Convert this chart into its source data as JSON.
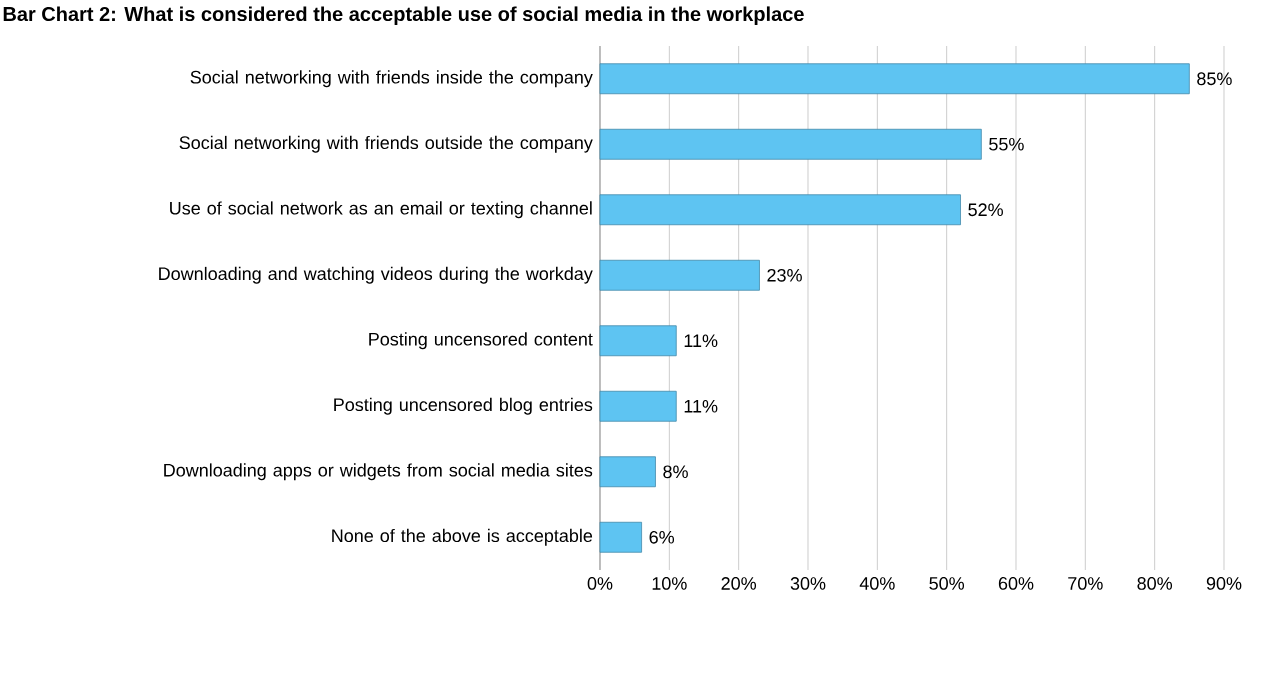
{
  "chart_data": {
    "type": "bar",
    "orientation": "horizontal",
    "title": "Bar Chart 2: What is considered the acceptable use of social media in the workplace",
    "categories": [
      "Social networking with friends inside the company",
      "Social networking with friends outside the company",
      "Use of social network as an email or texting channel",
      "Downloading and watching videos during the workday",
      "Posting uncensored content",
      "Posting uncensored blog entries",
      "Downloading apps or widgets from social media sites",
      "None of the above is acceptable"
    ],
    "values": [
      85,
      55,
      52,
      23,
      11,
      11,
      8,
      6
    ],
    "value_labels": [
      "85%",
      "55%",
      "52%",
      "23%",
      "11%",
      "11%",
      "8%",
      "6%"
    ],
    "color": "#5ec4f2",
    "xlim": [
      0,
      90
    ],
    "xticks": [
      {
        "value": 0,
        "label": "0%"
      },
      {
        "value": 10,
        "label": "10%"
      },
      {
        "value": 20,
        "label": "20%"
      },
      {
        "value": 30,
        "label": "30%"
      },
      {
        "value": 40,
        "label": "40%"
      },
      {
        "value": 50,
        "label": "50%"
      },
      {
        "value": 60,
        "label": "60%"
      },
      {
        "value": 70,
        "label": "70%"
      },
      {
        "value": 80,
        "label": "80%"
      },
      {
        "value": 90,
        "label": "90%"
      }
    ],
    "grid": "x"
  }
}
